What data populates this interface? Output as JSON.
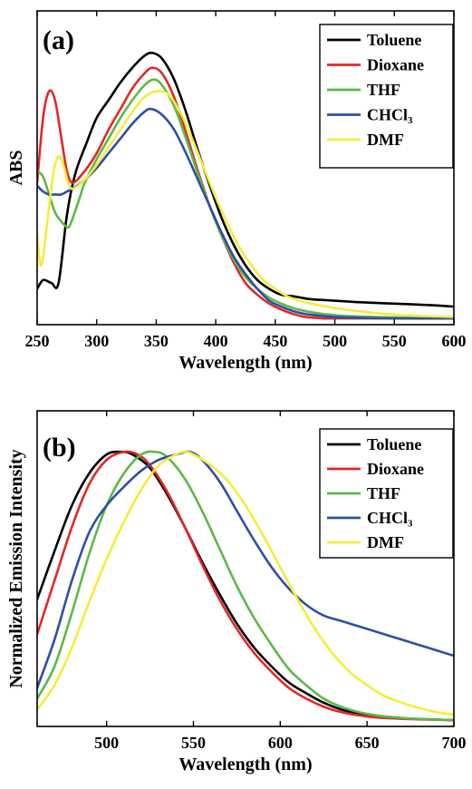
{
  "chart_data": [
    {
      "type": "line",
      "panel_label": "(a)",
      "xlabel": "Wavelength (nm)",
      "ylabel": "ABS",
      "xlim": [
        250,
        600
      ],
      "ylim": [
        0,
        1
      ],
      "xticks": [
        250,
        300,
        350,
        400,
        450,
        500,
        550,
        600
      ],
      "yticks_shown": false,
      "grid": false,
      "legend_position": "top-right",
      "series": [
        {
          "name": "Toluene",
          "color": "#000000",
          "x": [
            250,
            255,
            262,
            268,
            275,
            282,
            292,
            300,
            310,
            320,
            330,
            340,
            347,
            355,
            365,
            375,
            385,
            395,
            405,
            415,
            425,
            435,
            445,
            455,
            465,
            472,
            480,
            500,
            520,
            550,
            580,
            600
          ],
          "y": [
            0.1,
            0.13,
            0.12,
            0.12,
            0.35,
            0.49,
            0.6,
            0.68,
            0.74,
            0.8,
            0.85,
            0.89,
            0.9,
            0.88,
            0.81,
            0.7,
            0.57,
            0.45,
            0.34,
            0.25,
            0.18,
            0.13,
            0.1,
            0.08,
            0.075,
            0.07,
            0.065,
            0.06,
            0.055,
            0.05,
            0.045,
            0.04
          ]
        },
        {
          "name": "Dioxane",
          "color": "#e32726",
          "x": [
            250,
            255,
            260,
            265,
            270,
            275,
            280,
            290,
            300,
            310,
            320,
            330,
            340,
            347,
            355,
            365,
            375,
            385,
            395,
            405,
            415,
            425,
            435,
            445,
            455,
            465,
            475,
            490,
            500,
            520,
            550,
            600
          ],
          "y": [
            0.46,
            0.68,
            0.77,
            0.74,
            0.62,
            0.5,
            0.46,
            0.5,
            0.56,
            0.64,
            0.71,
            0.78,
            0.83,
            0.85,
            0.83,
            0.75,
            0.63,
            0.5,
            0.38,
            0.28,
            0.19,
            0.12,
            0.08,
            0.05,
            0.03,
            0.015,
            0.005,
            0.0,
            0.0,
            0.0,
            0.0,
            0.0
          ]
        },
        {
          "name": "THF",
          "color": "#5cb947",
          "x": [
            250,
            255,
            260,
            265,
            270,
            275,
            278,
            285,
            290,
            300,
            310,
            320,
            330,
            340,
            348,
            355,
            365,
            375,
            385,
            395,
            405,
            415,
            425,
            435,
            445,
            455,
            465,
            475,
            490,
            510,
            550,
            600
          ],
          "y": [
            0.5,
            0.48,
            0.42,
            0.36,
            0.33,
            0.31,
            0.32,
            0.4,
            0.46,
            0.54,
            0.61,
            0.68,
            0.74,
            0.79,
            0.81,
            0.79,
            0.72,
            0.61,
            0.49,
            0.38,
            0.28,
            0.2,
            0.14,
            0.1,
            0.07,
            0.05,
            0.035,
            0.025,
            0.015,
            0.008,
            0.003,
            0.0
          ]
        },
        {
          "name": "CHCl₃",
          "color": "#2e4fa6",
          "x": [
            250,
            255,
            260,
            265,
            270,
            275,
            280,
            290,
            300,
            310,
            320,
            330,
            340,
            346,
            355,
            365,
            375,
            385,
            395,
            405,
            415,
            425,
            435,
            445,
            455,
            465,
            475,
            490,
            510,
            550,
            600
          ],
          "y": [
            0.45,
            0.43,
            0.42,
            0.42,
            0.42,
            0.43,
            0.44,
            0.47,
            0.51,
            0.56,
            0.61,
            0.66,
            0.7,
            0.71,
            0.69,
            0.64,
            0.56,
            0.47,
            0.38,
            0.29,
            0.21,
            0.15,
            0.1,
            0.06,
            0.04,
            0.025,
            0.015,
            0.008,
            0.003,
            0.0,
            0.0
          ]
        },
        {
          "name": "DMF",
          "color": "#f5ec3b",
          "x": [
            250,
            253,
            256,
            260,
            264,
            268,
            272,
            276,
            280,
            290,
            300,
            310,
            320,
            330,
            340,
            350,
            360,
            370,
            380,
            390,
            400,
            410,
            420,
            430,
            440,
            450,
            460,
            470,
            480,
            500,
            530,
            560,
            600
          ],
          "y": [
            0.28,
            0.18,
            0.24,
            0.38,
            0.5,
            0.55,
            0.52,
            0.46,
            0.44,
            0.47,
            0.52,
            0.58,
            0.64,
            0.7,
            0.75,
            0.77,
            0.76,
            0.7,
            0.61,
            0.51,
            0.41,
            0.32,
            0.24,
            0.18,
            0.13,
            0.1,
            0.075,
            0.06,
            0.05,
            0.035,
            0.02,
            0.01,
            0.005
          ]
        }
      ]
    },
    {
      "type": "line",
      "panel_label": "(b)",
      "xlabel": "Wavelength (nm)",
      "ylabel": "Normalized Emission Intensity",
      "xlim": [
        460,
        700
      ],
      "ylim": [
        0,
        1
      ],
      "xticks": [
        500,
        550,
        600,
        650,
        700
      ],
      "yticks_shown": false,
      "grid": false,
      "legend_position": "top-right",
      "series": [
        {
          "name": "Toluene",
          "color": "#000000",
          "x": [
            460,
            470,
            480,
            490,
            500,
            508,
            515,
            525,
            535,
            545,
            555,
            565,
            575,
            585,
            595,
            605,
            615,
            625,
            635,
            645,
            655,
            670,
            685,
            700
          ],
          "y": [
            0.45,
            0.63,
            0.8,
            0.92,
            0.99,
            1.0,
            0.99,
            0.94,
            0.84,
            0.72,
            0.59,
            0.47,
            0.36,
            0.27,
            0.2,
            0.14,
            0.1,
            0.065,
            0.04,
            0.025,
            0.015,
            0.007,
            0.003,
            0.0
          ]
        },
        {
          "name": "Dioxane",
          "color": "#e32726",
          "x": [
            460,
            470,
            480,
            490,
            500,
            510,
            518,
            525,
            535,
            545,
            555,
            565,
            575,
            585,
            595,
            605,
            615,
            625,
            635,
            645,
            655,
            670,
            685,
            700
          ],
          "y": [
            0.32,
            0.52,
            0.72,
            0.88,
            0.97,
            1.0,
            0.99,
            0.95,
            0.85,
            0.72,
            0.58,
            0.45,
            0.34,
            0.25,
            0.18,
            0.12,
            0.08,
            0.05,
            0.03,
            0.018,
            0.01,
            0.005,
            0.002,
            0.0
          ]
        },
        {
          "name": "THF",
          "color": "#5cb947",
          "x": [
            460,
            470,
            480,
            490,
            500,
            510,
            520,
            528,
            535,
            545,
            555,
            565,
            575,
            585,
            595,
            605,
            615,
            625,
            635,
            645,
            655,
            670,
            685,
            700
          ],
          "y": [
            0.08,
            0.2,
            0.4,
            0.62,
            0.8,
            0.92,
            0.99,
            1.0,
            0.98,
            0.9,
            0.78,
            0.64,
            0.5,
            0.38,
            0.28,
            0.19,
            0.13,
            0.08,
            0.05,
            0.03,
            0.018,
            0.008,
            0.003,
            0.0
          ]
        },
        {
          "name": "CHCl₃",
          "color": "#2e4fa6",
          "x": [
            460,
            470,
            480,
            490,
            500,
            510,
            520,
            530,
            540,
            548,
            555,
            565,
            575,
            585,
            595,
            605,
            615,
            625,
            635,
            645,
            655,
            665,
            675,
            685,
            700
          ],
          "y": [
            0.12,
            0.3,
            0.52,
            0.7,
            0.8,
            0.87,
            0.93,
            0.97,
            0.99,
            1.0,
            0.97,
            0.89,
            0.78,
            0.67,
            0.57,
            0.49,
            0.43,
            0.39,
            0.37,
            0.35,
            0.33,
            0.31,
            0.29,
            0.27,
            0.24
          ]
        },
        {
          "name": "DMF",
          "color": "#f5ec3b",
          "x": [
            460,
            470,
            480,
            490,
            500,
            510,
            520,
            530,
            540,
            545,
            550,
            560,
            570,
            580,
            590,
            600,
            610,
            620,
            630,
            640,
            650,
            660,
            670,
            680,
            690,
            700
          ],
          "y": [
            0.04,
            0.13,
            0.27,
            0.44,
            0.6,
            0.74,
            0.86,
            0.95,
            0.99,
            1.0,
            0.99,
            0.95,
            0.89,
            0.8,
            0.69,
            0.57,
            0.45,
            0.34,
            0.25,
            0.18,
            0.13,
            0.09,
            0.065,
            0.045,
            0.03,
            0.02
          ]
        }
      ]
    }
  ]
}
